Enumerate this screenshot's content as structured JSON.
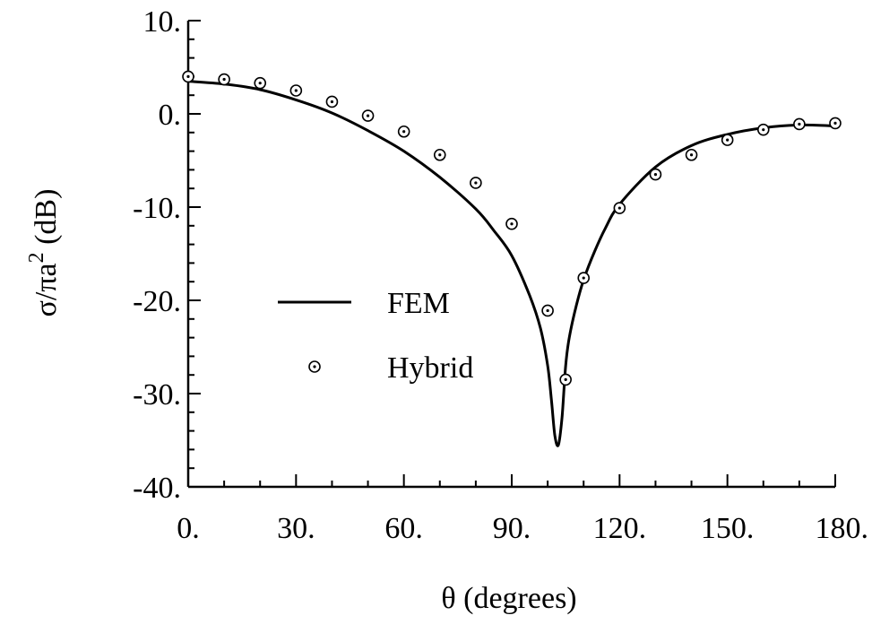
{
  "chart_data": {
    "type": "line",
    "title": "",
    "xlabel": "θ (degrees)",
    "ylabel_main": "σ/πa",
    "ylabel_sup": "2",
    "ylabel_unit": " (dB)",
    "xlim": [
      0,
      180
    ],
    "ylim": [
      -40,
      10
    ],
    "xticks": [
      0,
      30,
      60,
      90,
      120,
      150,
      180
    ],
    "xtick_labels": [
      "0.",
      "30.",
      "60.",
      "90.",
      "120.",
      "150.",
      "180."
    ],
    "yticks": [
      10,
      0,
      -10,
      -20,
      -30,
      -40
    ],
    "ytick_labels": [
      "10.",
      "0.",
      "-10.",
      "-20.",
      "-30.",
      "-40."
    ],
    "grid": false,
    "legend_position": "center-left",
    "series": [
      {
        "name": "FEM",
        "style": "solid-line",
        "color": "#000000",
        "x": [
          0,
          10,
          20,
          30,
          40,
          50,
          60,
          70,
          80,
          85,
          90,
          95,
          98,
          100,
          101,
          102,
          103,
          104,
          105,
          106,
          108,
          110,
          113,
          116,
          120,
          130,
          140,
          150,
          160,
          170,
          180
        ],
        "y": [
          3.5,
          3.2,
          2.6,
          1.5,
          0.1,
          -1.8,
          -4.0,
          -6.8,
          -10.2,
          -12.5,
          -15.2,
          -19.5,
          -23.0,
          -27.0,
          -30.5,
          -34.5,
          -35.5,
          -32.5,
          -27.0,
          -24.0,
          -20.5,
          -17.8,
          -14.8,
          -12.3,
          -9.7,
          -5.7,
          -3.4,
          -2.2,
          -1.5,
          -1.2,
          -1.3
        ]
      },
      {
        "name": "Hybrid",
        "style": "circle-dot-marker",
        "color": "#000000",
        "x": [
          0,
          10,
          20,
          30,
          40,
          50,
          60,
          70,
          80,
          90,
          100,
          105,
          110,
          120,
          130,
          140,
          150,
          160,
          170,
          180
        ],
        "y": [
          4.0,
          3.7,
          3.3,
          2.5,
          1.3,
          -0.2,
          -1.9,
          -4.4,
          -7.4,
          -11.8,
          -21.1,
          -28.5,
          -17.6,
          -10.1,
          -6.5,
          -4.4,
          -2.8,
          -1.7,
          -1.1,
          -1.0
        ]
      }
    ]
  }
}
